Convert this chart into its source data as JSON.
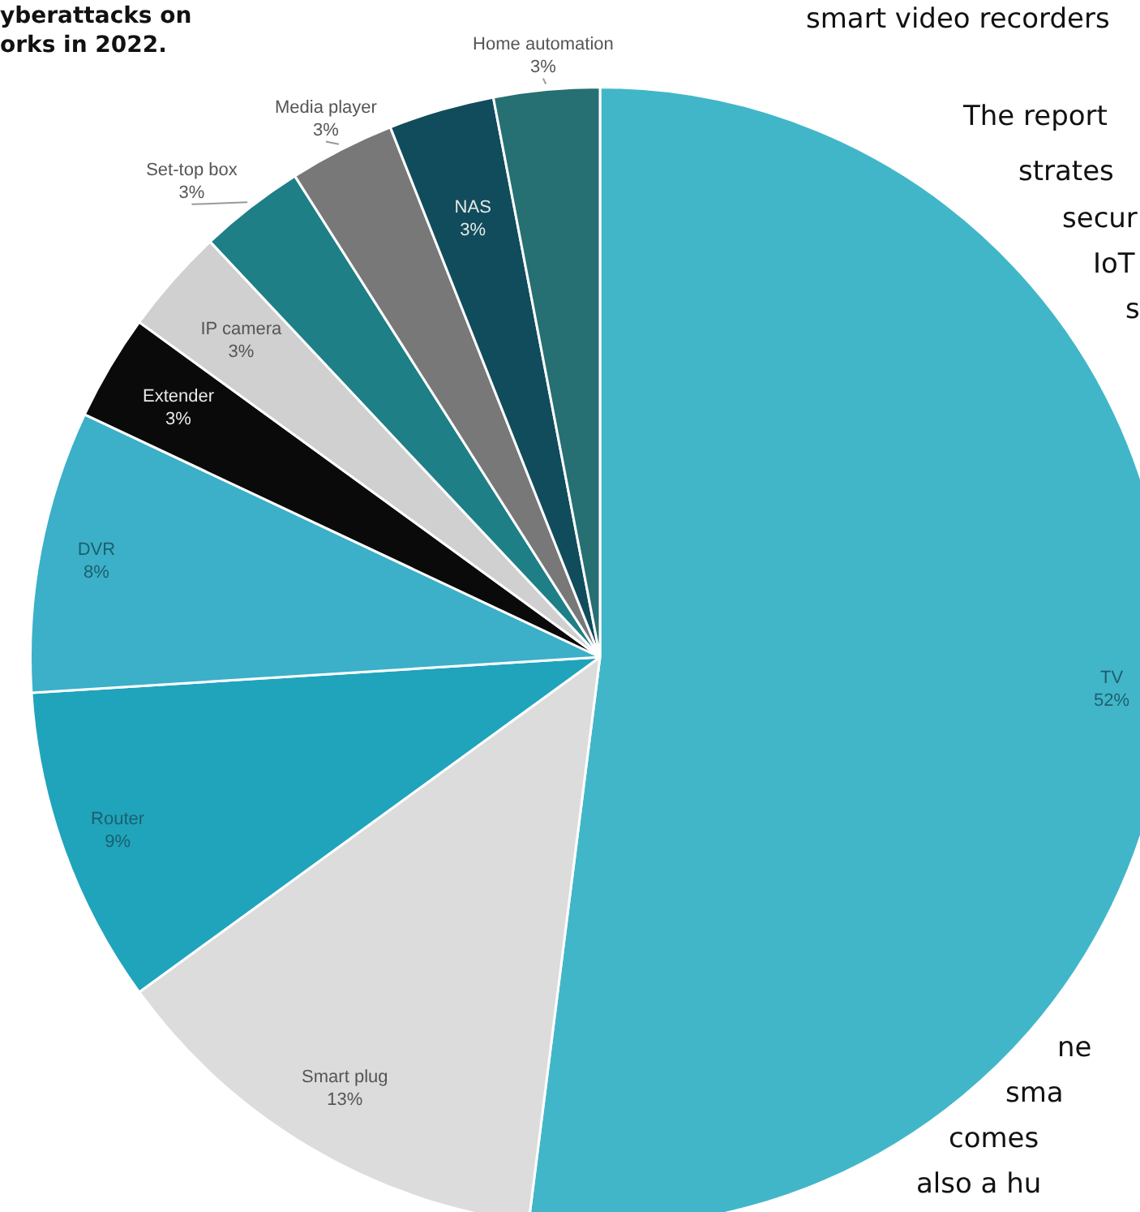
{
  "chart_data": {
    "type": "pie",
    "title": "yberattacks on orks in 2022.",
    "categories": [
      "TV",
      "Smart plug",
      "Router",
      "DVR",
      "Extender",
      "IP camera",
      "Set-top box",
      "Media player",
      "NAS",
      "Home automation"
    ],
    "values": [
      52,
      13,
      9,
      8,
      3,
      3,
      3,
      3,
      3,
      3
    ],
    "colors": [
      "#42b6c9",
      "#dcdcdc",
      "#1fa4bc",
      "#3bb0c8",
      "#0a0a0a",
      "#d0d0d0",
      "#1e7f86",
      "#787878",
      "#104c5c",
      "#266f73"
    ],
    "value_labels": [
      "52%",
      "13%",
      "9%",
      "8%",
      "3%",
      "3%",
      "3%",
      "3%",
      "3%",
      "3%"
    ],
    "legend": false,
    "annotations": [
      "smart video recorders",
      "The report",
      "strates",
      "secur",
      "IoT",
      "s",
      "ne",
      "sma",
      "comes",
      "also a hu"
    ]
  }
}
